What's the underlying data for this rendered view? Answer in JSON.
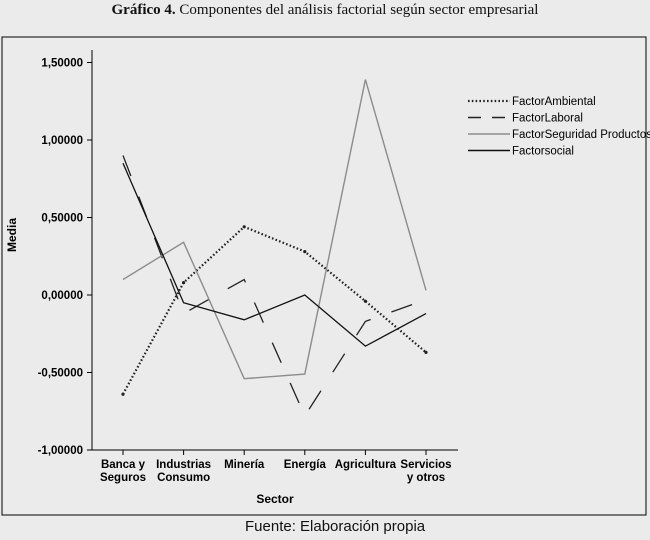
{
  "figure": {
    "title_bold": "Gráfico 4.",
    "title_rest": " Componentes del análisis factorial según sector empresarial",
    "source_note": "Fuente: Elaboración propia"
  },
  "chart_data": {
    "type": "line",
    "title": "",
    "xlabel": "Sector",
    "ylabel": "Media",
    "ylim": [
      -1.0,
      1.5
    ],
    "yticks": [
      1.5,
      1.0,
      0.5,
      0.0,
      -0.5,
      -1.0
    ],
    "ytick_labels": [
      "1,50000",
      "1,00000",
      "0,50000",
      "0,00000",
      "-0,50000",
      "-1,00000"
    ],
    "categories": [
      [
        "Banca y",
        "Seguros"
      ],
      [
        "Industrias",
        "Consumo"
      ],
      [
        "Minería"
      ],
      [
        "Energía"
      ],
      [
        "Agricultura"
      ],
      [
        "Servicios",
        "y otros"
      ]
    ],
    "legend_position": "right",
    "grid": false,
    "series": [
      {
        "name": "FactorAmbiental",
        "values": [
          -0.64,
          0.08,
          0.44,
          0.28,
          -0.04,
          -0.37
        ],
        "color": "#222222",
        "style": "dotted"
      },
      {
        "name": "FactorLaboral",
        "values": [
          0.9,
          -0.12,
          0.1,
          -0.78,
          -0.17,
          -0.03
        ],
        "color": "#222222",
        "style": "longdash"
      },
      {
        "name": "FactorSeguridad Productos",
        "values": [
          0.1,
          0.34,
          -0.54,
          -0.51,
          1.39,
          0.03
        ],
        "color": "#8c8c8c",
        "style": "solid"
      },
      {
        "name": "Factorsocial",
        "values": [
          0.85,
          -0.05,
          -0.16,
          0.0,
          -0.33,
          -0.12
        ],
        "color": "#111111",
        "style": "solid"
      }
    ]
  }
}
